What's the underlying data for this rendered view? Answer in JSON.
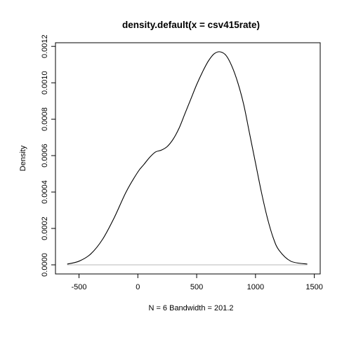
{
  "chart_data": {
    "type": "line",
    "title": "density.default(x = csv415rate)",
    "xlabel": "N = 6   Bandwidth = 201.2",
    "ylabel": "Density",
    "xlim": [
      -700,
      1550
    ],
    "ylim": [
      -5e-05,
      0.00122
    ],
    "x_ticks": [
      -500,
      0,
      500,
      1000,
      1500
    ],
    "x_tick_labels": [
      "-500",
      "0",
      "500",
      "1000",
      "1500"
    ],
    "y_ticks": [
      0.0,
      0.0002,
      0.0004,
      0.0006,
      0.0008,
      0.001,
      0.0012
    ],
    "y_tick_labels": [
      "0.0000",
      "0.0002",
      "0.0004",
      "0.0006",
      "0.0008",
      "0.0010",
      "0.0012"
    ],
    "zero_line": true,
    "grid": false,
    "series": [
      {
        "x": [
          -600,
          -500,
          -400,
          -300,
          -200,
          -100,
          0,
          50,
          100,
          150,
          200,
          250,
          300,
          350,
          400,
          450,
          500,
          550,
          600,
          650,
          700,
          750,
          800,
          850,
          900,
          950,
          1000,
          1050,
          1100,
          1150,
          1200,
          1300,
          1440
        ],
        "y": [
          4e-06,
          2e-05,
          6e-05,
          0.00014,
          0.00026,
          0.0004,
          0.00051,
          0.00055,
          0.00059,
          0.00062,
          0.00063,
          0.00065,
          0.00069,
          0.00075,
          0.00083,
          0.00091,
          0.00099,
          0.00106,
          0.00112,
          0.00116,
          0.00117,
          0.00115,
          0.00109,
          0.001,
          0.00088,
          0.00072,
          0.00056,
          0.0004,
          0.00026,
          0.00015,
          8e-05,
          2e-05,
          4e-06
        ]
      }
    ]
  }
}
